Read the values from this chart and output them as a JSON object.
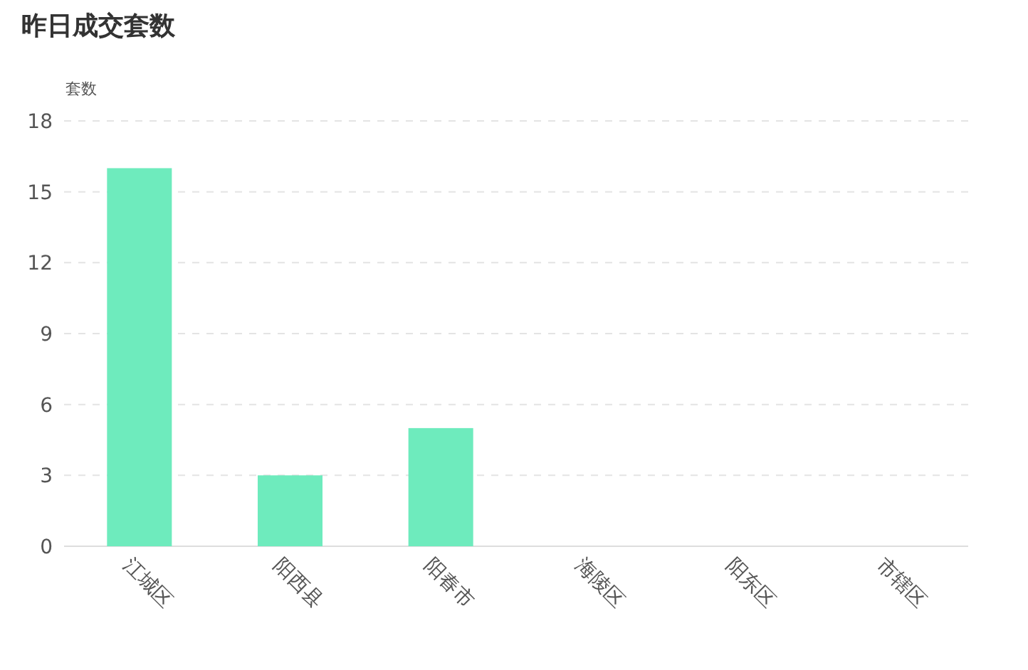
{
  "chart_data": {
    "type": "bar",
    "title": "昨日成交套数",
    "ylabel": "套数",
    "categories": [
      "江城区",
      "阳西县",
      "阳春市",
      "海陵区",
      "阳东区",
      "市辖区"
    ],
    "values": [
      16,
      3,
      5,
      0,
      0,
      0
    ],
    "color": "#6eebbd",
    "ylim": [
      0,
      18
    ],
    "yticks": [
      0,
      3,
      6,
      9,
      12,
      15,
      18
    ],
    "grid": "y"
  }
}
